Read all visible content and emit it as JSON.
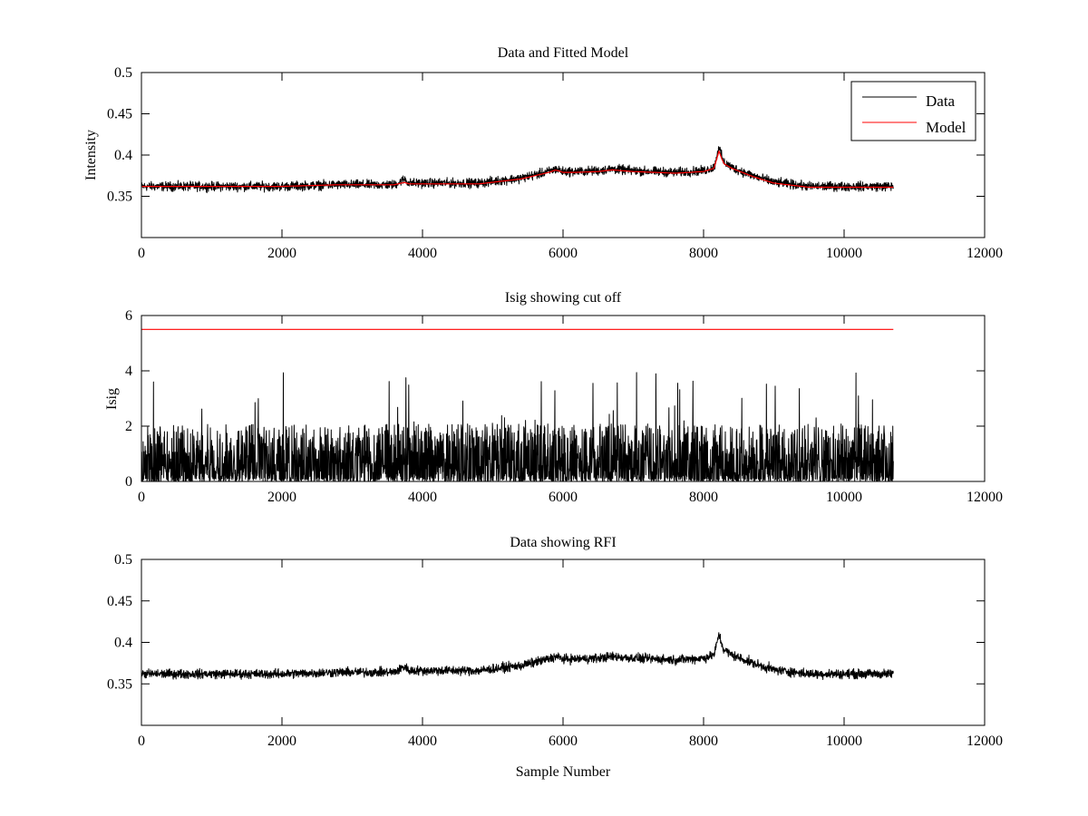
{
  "chart_data": [
    {
      "type": "line",
      "title": "Data and Fitted Model",
      "xlabel": "",
      "ylabel": "Intensity",
      "xlim": [
        0,
        12000
      ],
      "ylim": [
        0.3,
        0.5
      ],
      "xticks": [
        0,
        2000,
        4000,
        6000,
        8000,
        10000,
        12000
      ],
      "yticks": [
        0.35,
        0.4,
        0.45,
        0.5
      ],
      "ytick_labels": [
        "0.35",
        "0.4",
        "0.45",
        "0.5"
      ],
      "grid": false,
      "legend": "top-right",
      "series": [
        {
          "name": "Data",
          "color": "#000000",
          "noise_amplitude": 0.006,
          "x": [
            0,
            1000,
            2000,
            2800,
            3600,
            3750,
            3800,
            4000,
            4800,
            5400,
            5800,
            5900,
            6000,
            6200,
            6500,
            6700,
            7000,
            7300,
            7600,
            8000,
            8150,
            8220,
            8280,
            8400,
            8700,
            9000,
            9500,
            10000,
            10700
          ],
          "y": [
            0.362,
            0.362,
            0.362,
            0.364,
            0.364,
            0.371,
            0.366,
            0.366,
            0.366,
            0.372,
            0.38,
            0.383,
            0.38,
            0.38,
            0.381,
            0.383,
            0.381,
            0.38,
            0.379,
            0.381,
            0.385,
            0.41,
            0.392,
            0.385,
            0.375,
            0.367,
            0.362,
            0.362,
            0.362
          ]
        },
        {
          "name": "Model",
          "color": "#ff0000",
          "noise_amplitude": 0,
          "x": [
            0,
            1000,
            2000,
            2800,
            3600,
            3750,
            3800,
            4000,
            4800,
            5400,
            5800,
            5900,
            6000,
            6200,
            6500,
            6700,
            7000,
            7300,
            7600,
            8000,
            8150,
            8220,
            8280,
            8400,
            8700,
            9000,
            9500,
            10000,
            10700
          ],
          "y": [
            0.362,
            0.362,
            0.362,
            0.364,
            0.364,
            0.367,
            0.365,
            0.365,
            0.365,
            0.371,
            0.379,
            0.382,
            0.379,
            0.379,
            0.38,
            0.382,
            0.38,
            0.379,
            0.378,
            0.38,
            0.384,
            0.405,
            0.39,
            0.384,
            0.374,
            0.366,
            0.361,
            0.361,
            0.361
          ]
        }
      ]
    },
    {
      "type": "line",
      "title": "Isig showing cut off",
      "xlabel": "",
      "ylabel": "Isig",
      "xlim": [
        0,
        12000
      ],
      "ylim": [
        0,
        6
      ],
      "xticks": [
        0,
        2000,
        4000,
        6000,
        8000,
        10000,
        12000
      ],
      "yticks": [
        0,
        2,
        4,
        6
      ],
      "ytick_labels": [
        "0",
        "2",
        "4",
        "6"
      ],
      "grid": false,
      "series": [
        {
          "color": "#000000",
          "noise_amplitude": 1.6,
          "x": [
            0,
            10700
          ],
          "y": [
            0.8,
            0.8
          ],
          "peak_max": 3.95
        },
        {
          "color": "#ff0000",
          "noise_amplitude": 0,
          "x": [
            0,
            10700
          ],
          "y": [
            5.5,
            5.5
          ]
        }
      ]
    },
    {
      "type": "line",
      "title": "Data showing RFI",
      "xlabel": "Sample Number",
      "ylabel": "",
      "xlim": [
        0,
        12000
      ],
      "ylim": [
        0.3,
        0.5
      ],
      "xticks": [
        0,
        2000,
        4000,
        6000,
        8000,
        10000,
        12000
      ],
      "yticks": [
        0.35,
        0.4,
        0.45,
        0.5
      ],
      "ytick_labels": [
        "0.35",
        "0.4",
        "0.45",
        "0.5"
      ],
      "grid": false,
      "series": [
        {
          "color": "#000000",
          "noise_amplitude": 0.006,
          "x": [
            0,
            1000,
            2000,
            2800,
            3600,
            3750,
            3800,
            4000,
            4800,
            5400,
            5800,
            5900,
            6000,
            6200,
            6500,
            6700,
            7000,
            7300,
            7600,
            8000,
            8150,
            8220,
            8280,
            8400,
            8700,
            9000,
            9500,
            10000,
            10700
          ],
          "y": [
            0.362,
            0.362,
            0.362,
            0.364,
            0.364,
            0.371,
            0.366,
            0.366,
            0.366,
            0.372,
            0.38,
            0.383,
            0.38,
            0.38,
            0.381,
            0.383,
            0.381,
            0.38,
            0.379,
            0.381,
            0.385,
            0.41,
            0.392,
            0.385,
            0.375,
            0.367,
            0.362,
            0.362,
            0.362
          ]
        }
      ]
    }
  ]
}
